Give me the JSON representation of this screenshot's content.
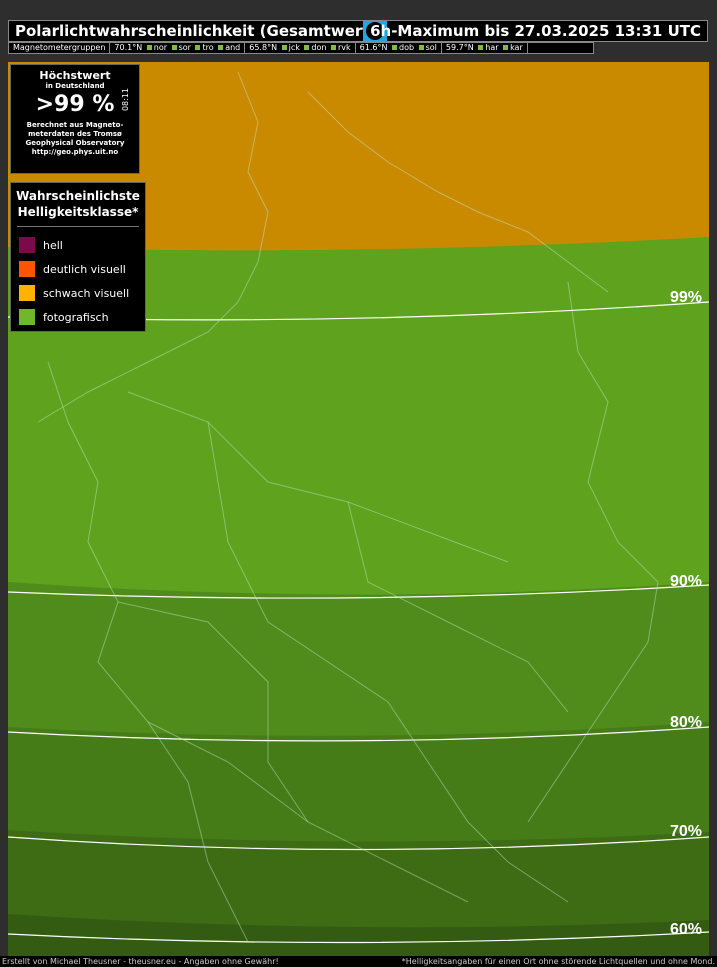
{
  "header": {
    "title": "Polarlichtwahrscheinlichkeit (Gesamtwert)",
    "subtitle": "6h-Maximum bis 27.03.2025 13:31 UTC"
  },
  "magnetometer": {
    "label": "Magnetometergruppen",
    "groups": [
      {
        "lat": "70.1°N",
        "stations": [
          "nor",
          "sor",
          "tro",
          "and"
        ]
      },
      {
        "lat": "65.8°N",
        "stations": [
          "jck",
          "don",
          "rvk"
        ]
      },
      {
        "lat": "61.6°N",
        "stations": [
          "dob",
          "sol"
        ]
      },
      {
        "lat": "59.7°N",
        "stations": [
          "har",
          "kar"
        ]
      }
    ]
  },
  "infobox": {
    "title": "Höchstwert",
    "subtitle": "in Deutschland",
    "value": ">99 %",
    "time": "08:11",
    "desc_1": "Berechnet aus Magneto-",
    "desc_2": "meterdaten des Tromsø",
    "desc_3": "Geophysical Observatory",
    "desc_4": "http://geo.phys.uit.no"
  },
  "legend": {
    "title_1": "Wahrscheinlichste",
    "title_2": "Helligkeitsklasse*",
    "items": [
      {
        "label": "hell",
        "color": "#7a0a4a"
      },
      {
        "label": "deutlich visuell",
        "color": "#ff5500"
      },
      {
        "label": "schwach visuell",
        "color": "#ffb300"
      },
      {
        "label": "fotografisch",
        "color": "#6fb82c"
      }
    ]
  },
  "contours": [
    "99%",
    "90%",
    "80%",
    "70%",
    "60%"
  ],
  "colors": {
    "weak_visual": "#c98a00",
    "photo_1": "#5ea21e",
    "photo_2": "#4f8c1b",
    "photo_3": "#467c18",
    "photo_4": "#3d6c15",
    "photo_5": "#335c12"
  },
  "footer": {
    "left": "Erstellt von Michael Theusner - theusner.eu - Angaben ohne Gewähr!",
    "right": "*Helligkeitsangaben für einen Ort ohne störende Lichtquellen und ohne Mond."
  }
}
